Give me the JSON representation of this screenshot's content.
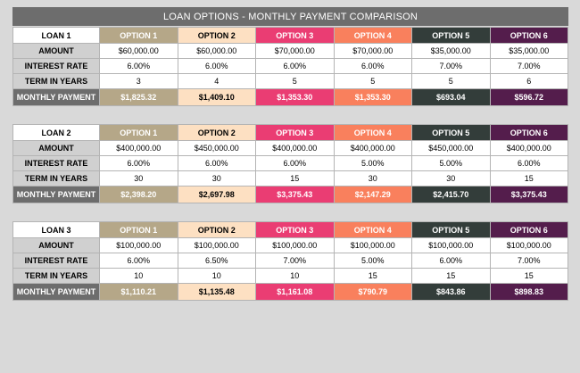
{
  "title": "LOAN OPTIONS - MONTHLY PAYMENT COMPARISON",
  "row_labels": {
    "amount": "AMOUNT",
    "rate": "INTEREST RATE",
    "term": "TERM IN YEARS",
    "payment": "MONTHLY PAYMENT"
  },
  "option_labels": [
    "OPTION 1",
    "OPTION 2",
    "OPTION 3",
    "OPTION 4",
    "OPTION 5",
    "OPTION 6"
  ],
  "option_colors": [
    "#b5a788",
    "#fde0c2",
    "#ea3d73",
    "#f9805d",
    "#333d3a",
    "#541d4c"
  ],
  "loans": [
    {
      "name": "LOAN 1",
      "amount": [
        "$60,000.00",
        "$60,000.00",
        "$70,000.00",
        "$70,000.00",
        "$35,000.00",
        "$35,000.00"
      ],
      "rate": [
        "6.00%",
        "6.00%",
        "6.00%",
        "6.00%",
        "7.00%",
        "7.00%"
      ],
      "term": [
        "3",
        "4",
        "5",
        "5",
        "5",
        "6"
      ],
      "payment": [
        "$1,825.32",
        "$1,409.10",
        "$1,353.30",
        "$1,353.30",
        "$693.04",
        "$596.72"
      ]
    },
    {
      "name": "LOAN 2",
      "amount": [
        "$400,000.00",
        "$450,000.00",
        "$400,000.00",
        "$400,000.00",
        "$450,000.00",
        "$400,000.00"
      ],
      "rate": [
        "6.00%",
        "6.00%",
        "6.00%",
        "5.00%",
        "5.00%",
        "6.00%"
      ],
      "term": [
        "30",
        "30",
        "15",
        "30",
        "30",
        "15"
      ],
      "payment": [
        "$2,398.20",
        "$2,697.98",
        "$3,375.43",
        "$2,147.29",
        "$2,415.70",
        "$3,375.43"
      ]
    },
    {
      "name": "LOAN 3",
      "amount": [
        "$100,000.00",
        "$100,000.00",
        "$100,000.00",
        "$100,000.00",
        "$100,000.00",
        "$100,000.00"
      ],
      "rate": [
        "6.00%",
        "6.50%",
        "7.00%",
        "5.00%",
        "6.00%",
        "7.00%"
      ],
      "term": [
        "10",
        "10",
        "10",
        "15",
        "15",
        "15"
      ],
      "payment": [
        "$1,110.21",
        "$1,135.48",
        "$1,161.08",
        "$790.79",
        "$843.86",
        "$898.83"
      ]
    }
  ]
}
